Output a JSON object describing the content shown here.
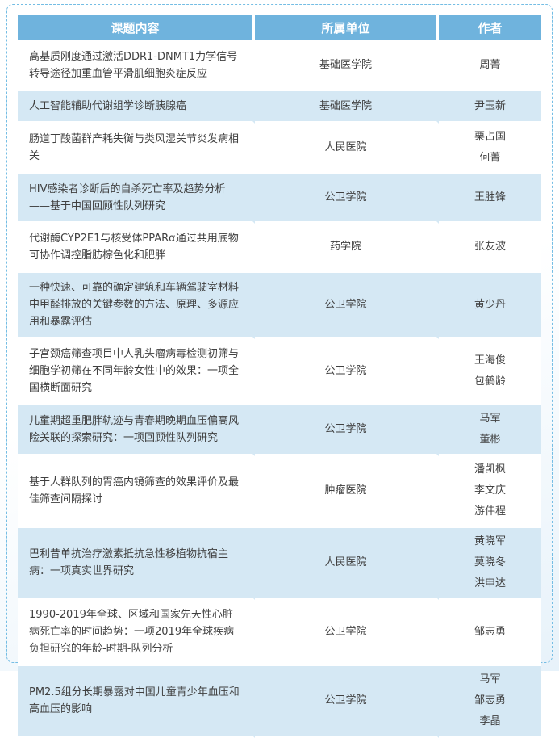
{
  "colors": {
    "header_bg": "#6FB3DD",
    "header_text": "#FFFFFF",
    "row_alt_bg": "#D5E8F4",
    "row_bg": "#FFFFFF",
    "border_dashed": "#74BDE4",
    "body_text": "#404040",
    "page_bg_top": "#FFFFFF",
    "page_bg_bottom": "#E7F2FA"
  },
  "table": {
    "headers": [
      "课题内容",
      "所属单位",
      "作者"
    ],
    "rows": [
      {
        "topic": "高基质刚度通过激活DDR1-DNMT1力学信号转导途径加重血管平滑肌细胞炎症反应",
        "unit": "基础医学院",
        "authors": [
          "周菁"
        ]
      },
      {
        "topic": "人工智能辅助代谢组学诊断胰腺癌",
        "unit": "基础医学院",
        "authors": [
          "尹玉新"
        ]
      },
      {
        "topic": "肠道丁酸菌群产耗失衡与类风湿关节炎发病相关",
        "unit": "人民医院",
        "authors": [
          "栗占国",
          "何菁"
        ]
      },
      {
        "topic": "HIV感染者诊断后的自杀死亡率及趋势分析——基于中国回顾性队列研究",
        "unit": "公卫学院",
        "authors": [
          "王胜锋"
        ]
      },
      {
        "topic": "代谢酶CYP2E1与核受体PPARα通过共用底物可协作调控脂肪棕色化和肥胖",
        "unit": "药学院",
        "authors": [
          "张友波"
        ]
      },
      {
        "topic": "一种快速、可靠的确定建筑和车辆驾驶室材料中甲醛排放的关键参数的方法、原理、多源应用和暴露评估",
        "unit": "公卫学院",
        "authors": [
          "黄少丹"
        ]
      },
      {
        "topic": "子宫颈癌筛查项目中人乳头瘤病毒检测初筛与细胞学初筛在不同年龄女性中的效果：一项全国横断面研究",
        "unit": "公卫学院",
        "authors": [
          "王海俊",
          "包鹤龄"
        ]
      },
      {
        "topic": "儿童期超重肥胖轨迹与青春期晚期血压偏高风险关联的探索研究：一项回顾性队列研究",
        "unit": "公卫学院",
        "authors": [
          "马军",
          "董彬"
        ]
      },
      {
        "topic": "基于人群队列的胃癌内镜筛查的效果评价及最佳筛查间隔探讨",
        "unit": "肿瘤医院",
        "authors": [
          "潘凯枫",
          "李文庆",
          "游伟程"
        ]
      },
      {
        "topic": "巴利昔单抗治疗激素抵抗急性移植物抗宿主病：一项真实世界研究",
        "unit": "人民医院",
        "authors": [
          "黄晓军",
          "莫晓冬",
          "洪申达"
        ]
      },
      {
        "topic": "1990-2019年全球、区域和国家先天性心脏病死亡率的时间趋势：一项2019年全球疾病负担研究的年龄-时期-队列分析",
        "unit": "公卫学院",
        "authors": [
          "邹志勇"
        ]
      },
      {
        "topic": "PM2.5组分长期暴露对中国儿童青少年血压和高血压的影响",
        "unit": "公卫学院",
        "authors": [
          "马军",
          "邹志勇",
          "李晶"
        ]
      }
    ]
  }
}
